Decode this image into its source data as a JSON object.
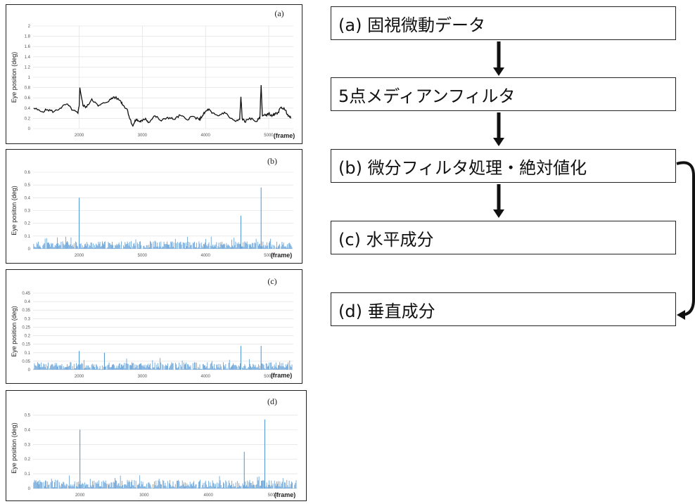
{
  "chart_data": [
    {
      "type": "line",
      "panel_label": "(a)",
      "ylabel": "Eye position (deg)",
      "xlabel": "(frame)",
      "yticks": [
        "0",
        "0.2",
        "0.4",
        "0.6",
        "0.8",
        "1",
        "1.2",
        "1.4",
        "1.6",
        "1.8",
        "2"
      ],
      "xticks": [
        "2000",
        "3000",
        "4000",
        "5000"
      ],
      "ylim": [
        0,
        2
      ],
      "xlim": [
        1270,
        5390
      ],
      "color": "#111111",
      "grid": true,
      "x": [
        1280,
        1400,
        1500,
        1600,
        1700,
        1800,
        1900,
        1980,
        2000,
        2010,
        2060,
        2120,
        2200,
        2300,
        2400,
        2500,
        2550,
        2650,
        2700,
        2760,
        2800,
        2850,
        2900,
        2950,
        3000,
        3050,
        3100,
        3200,
        3300,
        3400,
        3500,
        3600,
        3700,
        3800,
        3900,
        3950,
        4000,
        4050,
        4100,
        4200,
        4300,
        4400,
        4480,
        4540,
        4560,
        4580,
        4620,
        4700,
        4800,
        4860,
        4880,
        4900,
        4950,
        5000,
        5050,
        5100,
        5150,
        5200,
        5250,
        5300,
        5350
      ],
      "y": [
        0.4,
        0.33,
        0.37,
        0.33,
        0.4,
        0.48,
        0.36,
        0.3,
        0.45,
        0.8,
        0.45,
        0.42,
        0.58,
        0.44,
        0.5,
        0.57,
        0.62,
        0.55,
        0.45,
        0.38,
        0.2,
        0.05,
        0.18,
        0.14,
        0.15,
        0.2,
        0.12,
        0.25,
        0.15,
        0.22,
        0.18,
        0.26,
        0.18,
        0.24,
        0.17,
        0.25,
        0.33,
        0.38,
        0.3,
        0.25,
        0.32,
        0.2,
        0.14,
        0.18,
        0.62,
        0.2,
        0.13,
        0.21,
        0.14,
        0.2,
        0.85,
        0.25,
        0.26,
        0.3,
        0.24,
        0.28,
        0.32,
        0.42,
        0.38,
        0.28,
        0.2
      ]
    },
    {
      "type": "bar",
      "panel_label": "(b)",
      "ylabel": "Eye positon (deg)",
      "xlabel": "(frame)",
      "yticks": [
        "0",
        "0.1",
        "0.2",
        "0.3",
        "0.4",
        "0.5",
        "0.6"
      ],
      "xticks": [
        "2000",
        "5000",
        "4000",
        "5000"
      ],
      "ylim": [
        0,
        0.6
      ],
      "xlim": [
        1270,
        5390
      ],
      "color": "#5b9bd5",
      "grid": true,
      "baseline_max": 0.06,
      "seed": 11,
      "spikes": [
        [
          2000,
          0.4
        ],
        [
          4560,
          0.26
        ],
        [
          4880,
          0.48
        ]
      ]
    },
    {
      "type": "bar",
      "panel_label": "(c)",
      "ylabel": "Eye position (deg)",
      "xlabel": "(frame)",
      "yticks": [
        "0",
        "0.05",
        "0.1",
        "0.15",
        "0.2",
        "0.25",
        "0.3",
        "0.35",
        "0.4",
        "0.45"
      ],
      "xticks": [
        "2000",
        "3000",
        "4000",
        "5000"
      ],
      "ylim": [
        0,
        0.45
      ],
      "xlim": [
        1270,
        5390
      ],
      "color": "#5b9bd5",
      "grid": true,
      "baseline_max": 0.045,
      "seed": 23,
      "spikes": [
        [
          2000,
          0.11
        ],
        [
          2400,
          0.1
        ],
        [
          4560,
          0.14
        ],
        [
          4880,
          0.14
        ]
      ]
    },
    {
      "type": "bar",
      "panel_label": "(d)",
      "ylabel": "Eye position (deg)",
      "xlabel": "(frame)",
      "yticks": [
        "0",
        "0.1",
        "0.2",
        "0.3",
        "0.4",
        "0.5"
      ],
      "xticks": [
        "2000",
        "3000",
        "4000",
        "5000"
      ],
      "ylim": [
        0,
        0.55
      ],
      "xlim": [
        1270,
        5390
      ],
      "color": "#5b9bd5",
      "grid": true,
      "baseline_max": 0.06,
      "seed": 37,
      "spikes": [
        [
          2000,
          0.4
        ],
        [
          4560,
          0.25
        ],
        [
          4880,
          0.47
        ]
      ]
    }
  ],
  "flow": {
    "steps": [
      "(a) 固視微動データ",
      "5点メディアンフィルタ",
      "(b) 微分フィルタ処理・絶対値化",
      "(c) 水平成分",
      "(d) 垂直成分"
    ]
  }
}
